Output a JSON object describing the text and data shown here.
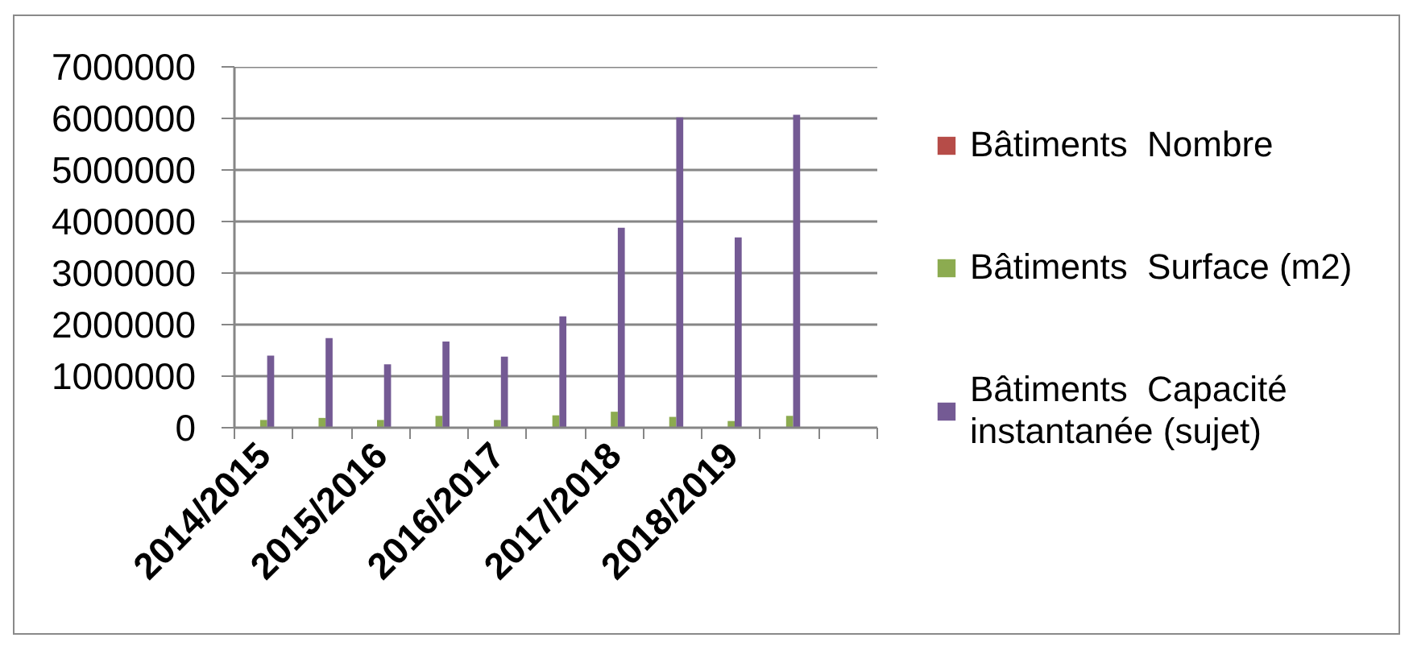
{
  "chart_data": {
    "type": "bar",
    "categories": [
      "2014/2015",
      null,
      "2015/2016",
      null,
      "2016/2017",
      null,
      "2017/2018",
      null,
      "2018/2019",
      null,
      null
    ],
    "series": [
      {
        "name": "Bâtiments  Nombre",
        "color": "#b64c48",
        "values": [
          0,
          0,
          0,
          0,
          0,
          0,
          0,
          0,
          0,
          0,
          null
        ]
      },
      {
        "name": "Bâtiments  Surface (m2)",
        "color": "#8cab50",
        "values": [
          150000,
          190000,
          150000,
          230000,
          150000,
          240000,
          310000,
          210000,
          130000,
          230000,
          null
        ]
      },
      {
        "name": "Bâtiments  Capacité instantanée (sujet)",
        "color": "#745a94",
        "values": [
          1400000,
          1740000,
          1230000,
          1670000,
          1380000,
          2160000,
          3880000,
          6020000,
          3690000,
          6070000,
          null
        ]
      }
    ],
    "ylim": [
      0,
      7000000
    ],
    "yticks": [
      0,
      1000000,
      2000000,
      3000000,
      4000000,
      5000000,
      6000000,
      7000000
    ],
    "grid": "y",
    "legend": "right"
  }
}
